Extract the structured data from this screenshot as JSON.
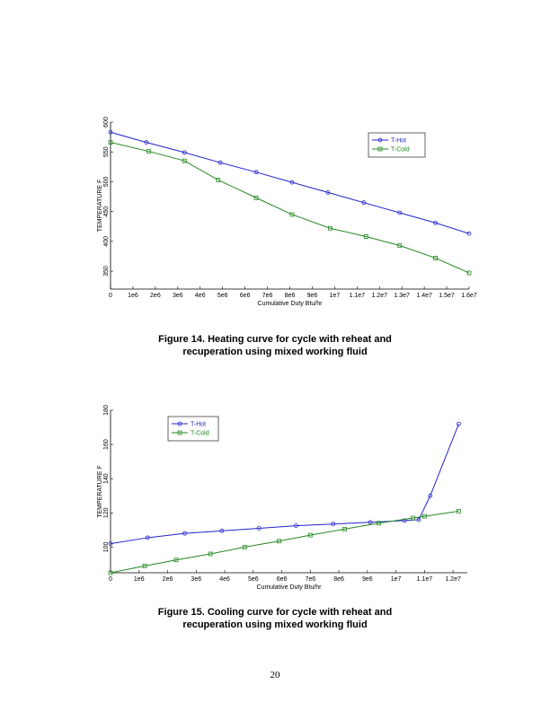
{
  "colors": {
    "hot": "#2222cc",
    "cold": "#228822"
  },
  "chart_data": [
    {
      "type": "line",
      "title": "",
      "xlabel": "Cumulative Duty  Btu/hr",
      "ylabel": "TEMPERATURE F",
      "xlim": [
        0,
        16000000
      ],
      "ylim": [
        320,
        600
      ],
      "x_ticks": [
        0,
        1000000,
        2000000,
        3000000,
        4000000,
        5000000,
        6000000,
        7000000,
        8000000,
        9000000,
        10000000,
        11000000,
        12000000,
        13000000,
        14000000,
        15000000,
        16000000
      ],
      "x_tick_labels": [
        "0",
        "1e6",
        "2e6",
        "3e6",
        "4e6",
        "5e6",
        "6e6",
        "7e6",
        "8e6",
        "9e6",
        "1e7",
        "1.1e7",
        "1.2e7",
        "1.3e7",
        "1.4e7",
        "1.5e7",
        "1.6e7"
      ],
      "y_ticks": [
        350,
        400,
        450,
        500,
        550,
        600
      ],
      "y_tick_labels": [
        "350",
        "400",
        "450",
        "500",
        "550",
        "600"
      ],
      "legend_position": "top-right",
      "series": [
        {
          "name": "T-Hot",
          "marker": "circle",
          "x": [
            0,
            1600000,
            3300000,
            4900000,
            6500000,
            8100000,
            9700000,
            11300000,
            12900000,
            14500000,
            16000000
          ],
          "y": [
            583,
            566,
            549,
            532,
            516,
            499,
            482,
            465,
            448,
            431,
            413
          ]
        },
        {
          "name": "T-Cold",
          "marker": "square",
          "x": [
            0,
            1700000,
            3300000,
            4800000,
            6500000,
            8100000,
            9800000,
            11400000,
            12900000,
            14500000,
            16000000
          ],
          "y": [
            566,
            551,
            535,
            503,
            473,
            445,
            422,
            408,
            393,
            372,
            347
          ]
        }
      ]
    },
    {
      "type": "line",
      "title": "",
      "xlabel": "Cumulative Duty  Btu/hr",
      "ylabel": "TEMPERATURE F",
      "xlim": [
        0,
        12500000
      ],
      "ylim": [
        85,
        180
      ],
      "x_ticks": [
        0,
        1000000,
        2000000,
        3000000,
        4000000,
        5000000,
        6000000,
        7000000,
        8000000,
        9000000,
        10000000,
        11000000,
        12000000
      ],
      "x_tick_labels": [
        "0",
        "1e6",
        "2e6",
        "3e6",
        "4e6",
        "5e6",
        "6e6",
        "7e6",
        "8e6",
        "9e6",
        "1e7",
        "1.1e7",
        "1.2e7"
      ],
      "y_ticks": [
        100,
        120,
        140,
        160,
        180
      ],
      "y_tick_labels": [
        "100",
        "120",
        "140",
        "160",
        "180"
      ],
      "legend_position": "top-left",
      "series": [
        {
          "name": "T-Hot",
          "marker": "circle",
          "x": [
            0,
            1300000,
            2600000,
            3900000,
            5200000,
            6500000,
            7800000,
            9100000,
            10300000,
            10800000,
            11200000,
            12200000
          ],
          "y": [
            102,
            105.5,
            108,
            109.5,
            111,
            112.5,
            113.5,
            114.5,
            115.5,
            116,
            130,
            172
          ]
        },
        {
          "name": "T-Cold",
          "marker": "square",
          "x": [
            0,
            1200000,
            2300000,
            3500000,
            4700000,
            5900000,
            7000000,
            8200000,
            9400000,
            10600000,
            11000000,
            12200000
          ],
          "y": [
            85,
            89,
            92.5,
            96,
            100,
            103.5,
            107,
            110.5,
            114,
            117,
            118,
            121
          ]
        }
      ]
    }
  ],
  "captions": [
    {
      "line1": "Figure 14.  Heating curve for cycle with reheat and",
      "line2": "recuperation using mixed working fluid"
    },
    {
      "line1": "Figure 15.  Cooling curve for cycle with reheat and",
      "line2": "recuperation using mixed working fluid"
    }
  ],
  "page_number": "20"
}
